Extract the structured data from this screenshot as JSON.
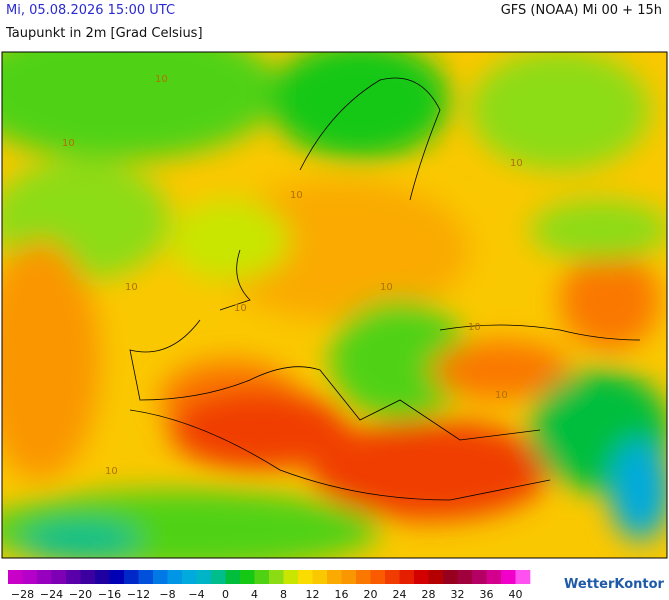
{
  "header": {
    "datetime": "Mi, 05.08.2026 15:00 UTC",
    "model": "GFS (NOAA) Mi 00 + 15h",
    "subtitle": "Taupunkt in 2m [Grad Celsius]"
  },
  "map": {
    "contour_labels": [
      "10",
      "10",
      "10",
      "10",
      "10",
      "10",
      "10",
      "10",
      "10",
      "10"
    ]
  },
  "legend": {
    "colors": [
      "#c800c8",
      "#b400c8",
      "#9600be",
      "#7d00b4",
      "#5a00aa",
      "#3c00a0",
      "#1e00a0",
      "#0000b4",
      "#0028c8",
      "#0050dc",
      "#0078e6",
      "#0096e6",
      "#00aadc",
      "#00b4c8",
      "#00be8c",
      "#00be3c",
      "#14c814",
      "#50d214",
      "#8cdc14",
      "#c8e600",
      "#fadc00",
      "#fac800",
      "#faaa00",
      "#fa9600",
      "#fa7800",
      "#fa5a00",
      "#f03c00",
      "#e61e00",
      "#d20000",
      "#b40000",
      "#96001e",
      "#a0003c",
      "#b40064",
      "#d2008c",
      "#f000c8",
      "#ff50f0"
    ],
    "labels": [
      "−28",
      "−24",
      "−20",
      "−16",
      "−12",
      "−8",
      "−4",
      "0",
      "4",
      "8",
      "12",
      "16",
      "20",
      "24",
      "28",
      "32",
      "36",
      "40"
    ]
  },
  "brand": "WetterKontor"
}
